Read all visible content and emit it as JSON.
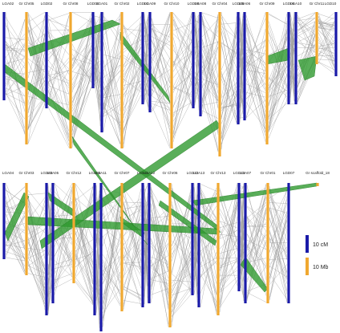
{
  "top_row": {
    "labels": [
      "LGA02",
      "Gr Chr05",
      "LGD02",
      "Gr Chr08",
      "LGD05",
      "LGA01",
      "Gr Chr02",
      "LGD01",
      "LGA09",
      "Gr Chr10",
      "LGD09",
      "LGA08",
      "Gr Chr04",
      "LGD08",
      "LGA06",
      "Gr Chr09",
      "LGD06",
      "LGA10",
      "Gr Chr11",
      "LGD10"
    ]
  },
  "bottom_row": {
    "labels": [
      "LGA04",
      "Gr Chr03",
      "LGD03",
      "LGA05",
      "Gr Chr12",
      "LGD04",
      "LGA11",
      "Gr Chr07",
      "LGD11",
      "LGA12",
      "Gr Chr06",
      "LGD12",
      "LGA13",
      "Gr Chr13",
      "LGD13",
      "LGA07",
      "Gr Chr01",
      "LGD07",
      "Gr scaffold_18"
    ]
  },
  "legend": {
    "items": [
      {
        "label": "10 cM"
      },
      {
        "label": "10 Mb"
      }
    ]
  }
}
